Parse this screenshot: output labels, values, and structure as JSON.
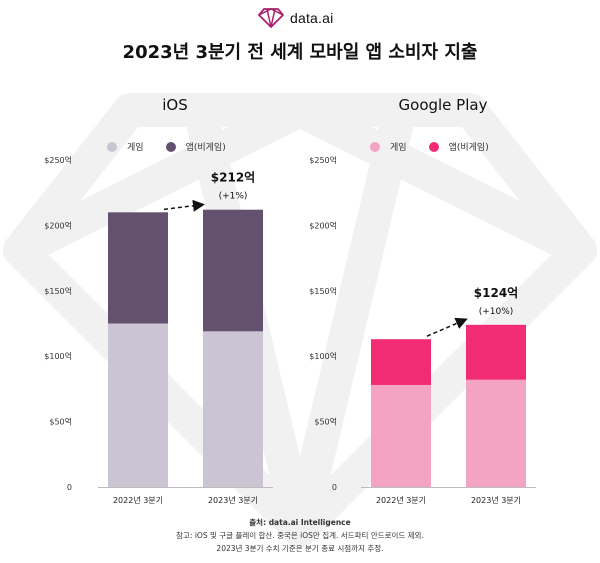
{
  "brand": {
    "name": "data.ai"
  },
  "title": "2023년 3분기 전 세계 모바일 앱 소비자 지출",
  "colors": {
    "ios_game": "#cbc5d3",
    "ios_app": "#63516f",
    "gp_game": "#f5a3c3",
    "gp_app": "#f22c74"
  },
  "chart_data": [
    {
      "type": "bar",
      "stacked": true,
      "title": "iOS",
      "categories": [
        "2022년 3분기",
        "2023년 3분기"
      ],
      "series": [
        {
          "name": "게임",
          "values": [
            125,
            119
          ]
        },
        {
          "name": "앱(비게임)",
          "values": [
            85,
            93
          ]
        }
      ],
      "totals": [
        210,
        212
      ],
      "ylim": [
        0,
        250
      ],
      "yticks": [
        "0",
        "$50억",
        "$100억",
        "$150억",
        "$200억",
        "$250억"
      ],
      "annotation": {
        "value": "$212억",
        "change": "(+1%)"
      },
      "legend_position": "top-left",
      "grid": false
    },
    {
      "type": "bar",
      "stacked": true,
      "title": "Google Play",
      "categories": [
        "2022년 3분기",
        "2023년 3분기"
      ],
      "series": [
        {
          "name": "게임",
          "values": [
            78,
            82
          ]
        },
        {
          "name": "앱(비게임)",
          "values": [
            35,
            42
          ]
        }
      ],
      "totals": [
        113,
        124
      ],
      "ylim": [
        0,
        250
      ],
      "yticks": [
        "0",
        "$50억",
        "$100억",
        "$150억",
        "$200억",
        "$250억"
      ],
      "annotation": {
        "value": "$124억",
        "change": "(+10%)"
      },
      "legend_position": "top-left",
      "grid": false
    }
  ],
  "footer": {
    "source": "출처: data.ai Intelligence",
    "note1": "참고: iOS 및 구글 플레이 합산. 중국은 iOS만 집계. 서드파티 안드로이드 제외.",
    "note2": "2023년 3분기 수치 기준은 분기 종료 시점까지 추정."
  }
}
